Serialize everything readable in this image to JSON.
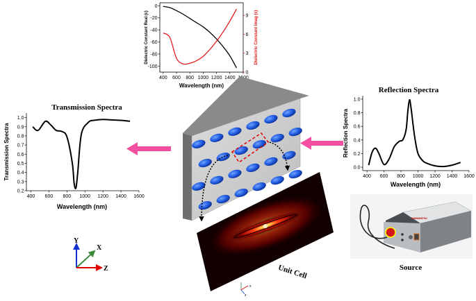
{
  "top_chart": {
    "xlabel": "Wavelength (nm)",
    "ylabel_left": "Dielectric Constant Real (ε)",
    "ylabel_right": "Dielectric Constant Imag (ε)",
    "x_ticks": [
      "400",
      "600",
      "800",
      "1000",
      "1200",
      "1400",
      "1600"
    ],
    "yl_ticks": [
      "0",
      "-20",
      "-40",
      "-60",
      "-80",
      "-100"
    ],
    "yr_ticks": [
      "0",
      "3",
      "6",
      "9"
    ],
    "colors": {
      "real": "#000000",
      "imag": "#e31a1c"
    }
  },
  "transmission": {
    "title": "Transmission Spectra",
    "xlabel": "Wavelength (nm)",
    "ylabel": "Transmission Spectra",
    "x_ticks": [
      "400",
      "600",
      "800",
      "1000",
      "1200",
      "1400",
      "1600"
    ],
    "y_ticks": [
      "1.0",
      "0.9",
      "0.8",
      "0.7",
      "0.6",
      "0.5",
      "0.4",
      "0.3",
      "0.2"
    ]
  },
  "reflection": {
    "title": "Reflection Spectra",
    "xlabel": "Wavelength (nm)",
    "ylabel": "Reflection Spectra",
    "x_ticks": [
      "400",
      "600",
      "800",
      "1000",
      "1200",
      "1400",
      "1600"
    ],
    "y_ticks": [
      "1.0",
      "0.8",
      "0.6",
      "0.4",
      "0.2",
      "0.0"
    ]
  },
  "labels": {
    "unit_cell": "Unit Cell",
    "source": "Source",
    "device_brand": "HAMAMATSU"
  },
  "axes": {
    "y": "Y",
    "x": "X",
    "z": "Z",
    "small_x": "x",
    "small_z": "z"
  },
  "chart_data": [
    {
      "type": "line",
      "x": [
        400,
        500,
        600,
        700,
        800,
        900,
        1000,
        1100,
        1200,
        1300,
        1400,
        1500
      ],
      "series": [
        {
          "values": [
            -1,
            -3,
            -8,
            -14,
            -21,
            -28,
            -35,
            -44,
            -55,
            -68,
            -83,
            -103
          ]
        },
        {
          "values": [
            6.2,
            5.5,
            2.2,
            1.3,
            1.4,
            1.8,
            2.5,
            3.6,
            4.9,
            6.4,
            8.1,
            10
          ]
        }
      ],
      "xlim": [
        350,
        1600
      ],
      "ylim": [
        -110,
        5
      ],
      "y2lim": [
        0,
        11
      ]
    },
    {
      "type": "line",
      "x": [
        420,
        480,
        560,
        620,
        680,
        740,
        800,
        860,
        880,
        900,
        920,
        960,
        1040,
        1100,
        1200,
        1300,
        1400,
        1500
      ],
      "series": [
        {
          "values": [
            0.9,
            0.86,
            0.96,
            0.92,
            0.86,
            0.85,
            0.79,
            0.5,
            0.28,
            0.23,
            0.4,
            0.82,
            0.95,
            0.97,
            0.98,
            0.975,
            0.97,
            0.96
          ]
        }
      ],
      "xlim": [
        350,
        1600
      ],
      "ylim": [
        0.2,
        1.05
      ]
    },
    {
      "type": "line",
      "x": [
        420,
        460,
        500,
        540,
        600,
        660,
        720,
        780,
        820,
        860,
        880,
        900,
        920,
        960,
        1000,
        1060,
        1120,
        1200,
        1300,
        1400,
        1500
      ],
      "series": [
        {
          "values": [
            0.03,
            0.22,
            0.28,
            0.2,
            0.04,
            0.12,
            0.3,
            0.38,
            0.4,
            0.55,
            0.82,
            0.99,
            0.85,
            0.45,
            0.2,
            0.09,
            0.05,
            0.02,
            0.01,
            0.03,
            0.07
          ]
        }
      ],
      "xlim": [
        350,
        1600
      ],
      "ylim": [
        -0.05,
        1.05
      ]
    }
  ]
}
